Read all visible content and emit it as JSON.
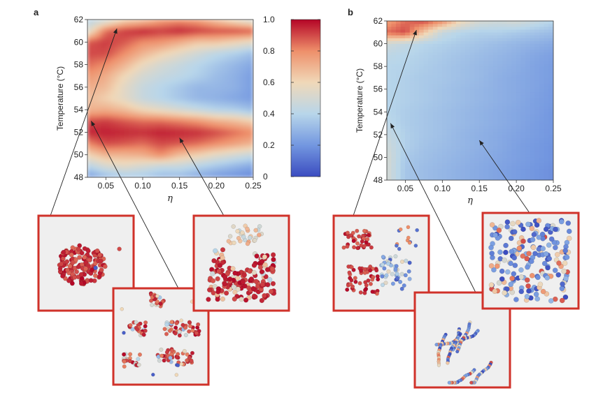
{
  "panels": [
    {
      "letter": "a",
      "ylabel": "Temperature (°C)",
      "xlabel": "η",
      "xticks": [
        "0.05",
        "0.10",
        "0.15",
        "0.20",
        "0.25"
      ],
      "yticks": [
        "48",
        "50",
        "52",
        "54",
        "56",
        "58",
        "60",
        "62"
      ]
    },
    {
      "letter": "b",
      "ylabel": "Temperature (°C)",
      "xlabel": "η",
      "xticks": [
        "0.05",
        "0.10",
        "0.15",
        "0.20",
        "0.25"
      ],
      "yticks": [
        "48",
        "50",
        "52",
        "54",
        "56",
        "58",
        "60",
        "62"
      ]
    }
  ],
  "colorbar": {
    "ticks": [
      "0",
      "0.2",
      "0.4",
      "0.6",
      "0.8",
      "1.0"
    ],
    "range": [
      0,
      1
    ],
    "colors": [
      "#3b4cc0",
      "#7397e0",
      "#b8d6ea",
      "#f0d8b8",
      "#ee8f6a",
      "#b40426"
    ]
  },
  "chart_data": [
    {
      "type": "heatmap",
      "panel": "a",
      "x": [
        0.025,
        0.05,
        0.075,
        0.1,
        0.125,
        0.15,
        0.175,
        0.2,
        0.225,
        0.25
      ],
      "y": [
        48,
        49,
        50,
        51,
        52,
        53,
        54,
        55,
        56,
        57,
        58,
        59,
        60,
        61,
        62
      ],
      "xlim": [
        0.025,
        0.25
      ],
      "ylim": [
        48,
        62
      ],
      "zlim": [
        0,
        1
      ],
      "z": [
        [
          0.2,
          0.3,
          0.35,
          0.35,
          0.3,
          0.3,
          0.25,
          0.2,
          0.18,
          0.15
        ],
        [
          0.4,
          0.5,
          0.55,
          0.5,
          0.45,
          0.45,
          0.4,
          0.35,
          0.3,
          0.25
        ],
        [
          0.6,
          0.7,
          0.7,
          0.72,
          0.8,
          0.68,
          0.62,
          0.55,
          0.5,
          0.45
        ],
        [
          0.8,
          0.9,
          0.88,
          0.85,
          0.9,
          0.88,
          0.85,
          0.8,
          0.75,
          0.7
        ],
        [
          0.95,
          0.96,
          0.95,
          0.94,
          0.96,
          0.95,
          0.94,
          0.9,
          0.85,
          0.8
        ],
        [
          0.9,
          0.92,
          0.88,
          0.85,
          0.85,
          0.82,
          0.78,
          0.72,
          0.68,
          0.62
        ],
        [
          0.7,
          0.72,
          0.68,
          0.6,
          0.55,
          0.5,
          0.45,
          0.4,
          0.38,
          0.32
        ],
        [
          0.68,
          0.62,
          0.55,
          0.45,
          0.4,
          0.35,
          0.3,
          0.28,
          0.25,
          0.22
        ],
        [
          0.72,
          0.68,
          0.55,
          0.45,
          0.4,
          0.35,
          0.3,
          0.3,
          0.28,
          0.22
        ],
        [
          0.78,
          0.72,
          0.6,
          0.5,
          0.45,
          0.42,
          0.38,
          0.32,
          0.28,
          0.22
        ],
        [
          0.85,
          0.8,
          0.7,
          0.58,
          0.5,
          0.45,
          0.4,
          0.35,
          0.3,
          0.25
        ],
        [
          0.9,
          0.9,
          0.8,
          0.7,
          0.62,
          0.55,
          0.48,
          0.42,
          0.38,
          0.32
        ],
        [
          0.88,
          0.92,
          0.88,
          0.8,
          0.78,
          0.72,
          0.65,
          0.65,
          0.6,
          0.55
        ],
        [
          0.5,
          0.85,
          0.92,
          0.95,
          0.92,
          0.95,
          0.92,
          0.9,
          0.9,
          0.88
        ],
        [
          0.4,
          0.45,
          0.6,
          0.65,
          0.75,
          0.78,
          0.75,
          0.65,
          0.55,
          0.45
        ]
      ]
    },
    {
      "type": "heatmap",
      "panel": "b",
      "x": [
        0.025,
        0.05,
        0.075,
        0.1,
        0.125,
        0.15,
        0.175,
        0.2,
        0.225,
        0.25
      ],
      "y": [
        48,
        49,
        50,
        51,
        52,
        53,
        54,
        55,
        56,
        57,
        58,
        59,
        60,
        61,
        62
      ],
      "xlim": [
        0.025,
        0.25
      ],
      "ylim": [
        48,
        62
      ],
      "zlim": [
        0,
        1
      ],
      "z": [
        [
          0.5,
          0.35,
          0.32,
          0.3,
          0.28,
          0.26,
          0.24,
          0.22,
          0.2,
          0.18
        ],
        [
          0.5,
          0.35,
          0.32,
          0.3,
          0.28,
          0.26,
          0.24,
          0.22,
          0.2,
          0.18
        ],
        [
          0.5,
          0.36,
          0.33,
          0.31,
          0.29,
          0.27,
          0.25,
          0.23,
          0.21,
          0.19
        ],
        [
          0.48,
          0.38,
          0.34,
          0.32,
          0.3,
          0.28,
          0.26,
          0.23,
          0.21,
          0.19
        ],
        [
          0.45,
          0.38,
          0.35,
          0.33,
          0.3,
          0.28,
          0.26,
          0.24,
          0.22,
          0.2
        ],
        [
          0.42,
          0.37,
          0.35,
          0.33,
          0.31,
          0.29,
          0.27,
          0.25,
          0.22,
          0.2
        ],
        [
          0.4,
          0.37,
          0.35,
          0.33,
          0.31,
          0.29,
          0.27,
          0.25,
          0.23,
          0.2
        ],
        [
          0.4,
          0.38,
          0.36,
          0.34,
          0.32,
          0.3,
          0.28,
          0.26,
          0.23,
          0.21
        ],
        [
          0.4,
          0.38,
          0.36,
          0.34,
          0.32,
          0.3,
          0.28,
          0.26,
          0.24,
          0.21
        ],
        [
          0.4,
          0.38,
          0.36,
          0.35,
          0.33,
          0.31,
          0.28,
          0.26,
          0.24,
          0.22
        ],
        [
          0.4,
          0.39,
          0.37,
          0.35,
          0.33,
          0.31,
          0.29,
          0.27,
          0.24,
          0.22
        ],
        [
          0.42,
          0.4,
          0.38,
          0.36,
          0.34,
          0.32,
          0.3,
          0.28,
          0.25,
          0.23
        ],
        [
          0.48,
          0.44,
          0.4,
          0.38,
          0.36,
          0.34,
          0.32,
          0.3,
          0.28,
          0.26
        ],
        [
          0.85,
          0.9,
          0.65,
          0.45,
          0.4,
          0.38,
          0.38,
          0.36,
          0.34,
          0.32
        ],
        [
          0.75,
          0.85,
          0.9,
          0.8,
          0.6,
          0.5,
          0.48,
          0.5,
          0.45,
          0.4
        ]
      ]
    }
  ],
  "arrows": [
    {
      "panel": "a",
      "x": 0.065,
      "y": 61.2,
      "inset": 0
    },
    {
      "panel": "a",
      "x": 0.03,
      "y": 53.0,
      "inset": 1
    },
    {
      "panel": "a",
      "x": 0.15,
      "y": 51.5,
      "inset": 2
    },
    {
      "panel": "b",
      "x": 0.065,
      "y": 61.2,
      "inset": 0
    },
    {
      "panel": "b",
      "x": 0.03,
      "y": 53.0,
      "inset": 1
    },
    {
      "panel": "b",
      "x": 0.15,
      "y": 51.5,
      "inset": 2
    }
  ]
}
